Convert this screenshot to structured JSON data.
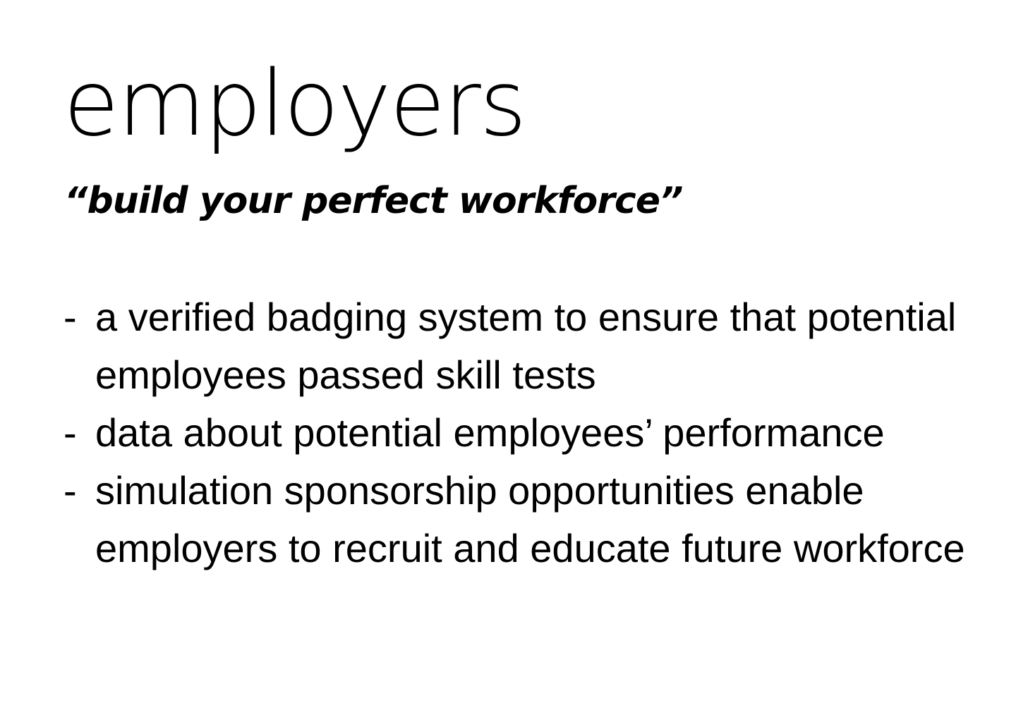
{
  "slide": {
    "title": "employers",
    "tagline": "“build your perfect workforce”",
    "bullets": [
      {
        "dash": "-",
        "text": "a verified badging system to ensure that potential employees passed skill tests"
      },
      {
        "dash": "-",
        "text": "data about potential employees’ performance"
      },
      {
        "dash": "-",
        "text": "simulation sponsorship opportunities enable employers to recruit and educate future workforce"
      }
    ]
  },
  "colors": {
    "background": "#ffffff",
    "text": "#000000"
  }
}
